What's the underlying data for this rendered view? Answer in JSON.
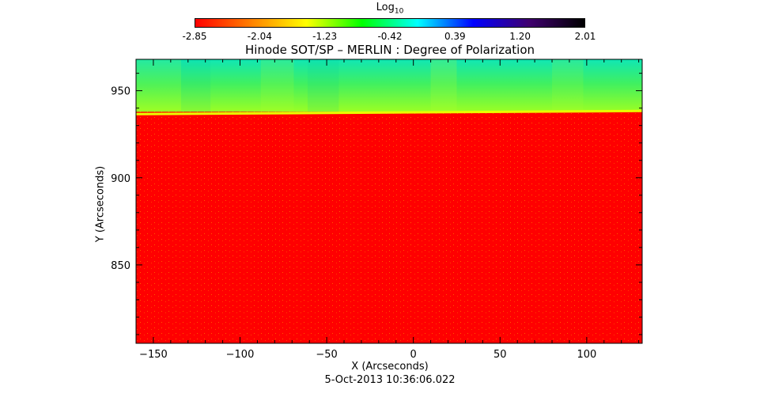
{
  "chart_data": {
    "type": "heatmap",
    "title": "Hinode SOT/SP – MERLIN : Degree of Polarization",
    "xlabel": "X (Arcseconds)",
    "ylabel": "Y (Arcseconds)",
    "xlim": [
      -160,
      132
    ],
    "ylim": [
      805,
      968
    ],
    "xticks": [
      -150,
      -100,
      -50,
      0,
      50,
      100
    ],
    "yticks": [
      850,
      900,
      950
    ],
    "colorbar": {
      "label": "Log",
      "label_subscript": "10",
      "range": [
        -2.85,
        2.01
      ],
      "ticks": [
        "-2.85",
        "-2.04",
        "-1.23",
        "-0.42",
        "0.39",
        "1.20",
        "2.01"
      ],
      "colors": [
        "#ff0000",
        "#ff8000",
        "#ffff00",
        "#00ff00",
        "#00ffff",
        "#0000ff",
        "#400070",
        "#000000"
      ]
    },
    "limb_y": 937,
    "regions": [
      {
        "name": "off-limb",
        "y_range": [
          937,
          968
        ],
        "log10_value_range": [
          -0.42,
          -1.6
        ]
      },
      {
        "name": "on-disk",
        "y_range": [
          805,
          937
        ],
        "log10_value": -2.85
      }
    ],
    "timestamp": "5-Oct-2013 10:36:06.022"
  }
}
